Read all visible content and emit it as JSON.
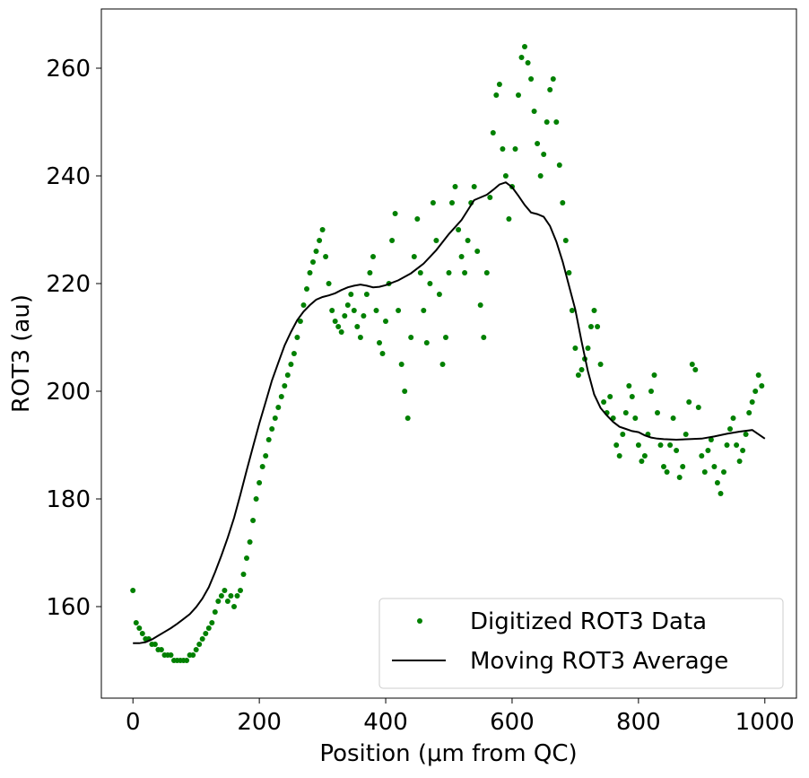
{
  "chart_data": {
    "type": "scatter",
    "title": "",
    "xlabel": "Position (μm from QC)",
    "ylabel": "ROT3 (au)",
    "xlim": [
      -50,
      1050
    ],
    "ylim": [
      143,
      271
    ],
    "xticks": [
      0,
      200,
      400,
      600,
      800,
      1000
    ],
    "yticks": [
      160,
      180,
      200,
      220,
      240,
      260
    ],
    "grid": false,
    "legend_position": "lower-right",
    "colors": {
      "scatter": "#008000",
      "line": "#000000"
    },
    "series": [
      {
        "name": "Digitized ROT3 Data",
        "kind": "scatter",
        "x": [
          0,
          5,
          10,
          15,
          20,
          25,
          30,
          35,
          40,
          45,
          50,
          55,
          60,
          65,
          70,
          75,
          80,
          85,
          90,
          95,
          100,
          105,
          110,
          115,
          120,
          125,
          130,
          135,
          140,
          145,
          150,
          155,
          160,
          165,
          170,
          175,
          180,
          185,
          190,
          195,
          200,
          205,
          210,
          215,
          220,
          225,
          230,
          235,
          240,
          245,
          250,
          255,
          260,
          265,
          270,
          275,
          280,
          285,
          290,
          295,
          300,
          305,
          310,
          315,
          320,
          325,
          330,
          335,
          340,
          345,
          350,
          355,
          360,
          365,
          370,
          375,
          380,
          385,
          390,
          395,
          400,
          405,
          410,
          415,
          420,
          425,
          430,
          435,
          440,
          445,
          450,
          455,
          460,
          465,
          470,
          475,
          480,
          485,
          490,
          495,
          500,
          505,
          510,
          515,
          520,
          525,
          530,
          535,
          540,
          545,
          550,
          555,
          560,
          565,
          570,
          575,
          580,
          585,
          590,
          595,
          600,
          605,
          610,
          615,
          620,
          625,
          630,
          635,
          640,
          645,
          650,
          655,
          660,
          665,
          670,
          675,
          680,
          685,
          690,
          695,
          700,
          705,
          710,
          715,
          720,
          725,
          730,
          735,
          740,
          745,
          750,
          755,
          760,
          765,
          770,
          775,
          780,
          785,
          790,
          795,
          800,
          805,
          810,
          815,
          820,
          825,
          830,
          835,
          840,
          845,
          850,
          855,
          860,
          865,
          870,
          875,
          880,
          885,
          890,
          895,
          900,
          905,
          910,
          915,
          920,
          925,
          930,
          935,
          940,
          945,
          950,
          955,
          960,
          965,
          970,
          975,
          980,
          985,
          990,
          995
        ],
        "y": [
          163,
          157,
          156,
          155,
          154,
          154,
          153,
          153,
          152,
          152,
          151,
          151,
          151,
          150,
          150,
          150,
          150,
          150,
          151,
          151,
          152,
          153,
          154,
          155,
          156,
          157,
          159,
          161,
          162,
          163,
          161,
          162,
          160,
          162,
          163,
          166,
          169,
          172,
          176,
          180,
          183,
          186,
          188,
          191,
          193,
          195,
          197,
          199,
          201,
          203,
          205,
          207,
          210,
          213,
          216,
          219,
          222,
          224,
          226,
          228,
          230,
          225,
          220,
          215,
          213,
          212,
          211,
          214,
          216,
          218,
          215,
          212,
          210,
          214,
          218,
          222,
          225,
          215,
          209,
          207,
          213,
          220,
          228,
          233,
          215,
          205,
          200,
          195,
          210,
          225,
          232,
          222,
          215,
          209,
          220,
          235,
          228,
          218,
          205,
          210,
          222,
          235,
          238,
          230,
          225,
          222,
          228,
          235,
          238,
          226,
          216,
          210,
          222,
          236,
          248,
          255,
          257,
          245,
          240,
          232,
          238,
          245,
          255,
          262,
          264,
          261,
          258,
          252,
          246,
          240,
          244,
          250,
          256,
          258,
          250,
          242,
          235,
          228,
          222,
          215,
          208,
          203,
          204,
          206,
          208,
          212,
          215,
          212,
          205,
          198,
          196,
          199,
          195,
          190,
          188,
          192,
          196,
          201,
          199,
          195,
          190,
          187,
          188,
          192,
          200,
          203,
          196,
          190,
          186,
          185,
          190,
          195,
          189,
          184,
          186,
          192,
          198,
          205,
          204,
          197,
          188,
          185,
          189,
          191,
          186,
          183,
          181,
          185,
          190,
          193,
          195,
          190,
          187,
          189,
          192,
          196,
          198,
          200,
          203,
          201
        ]
      },
      {
        "name": "Moving ROT3 Average",
        "kind": "line",
        "x": [
          0,
          10,
          20,
          30,
          40,
          50,
          60,
          70,
          80,
          90,
          100,
          110,
          120,
          130,
          140,
          150,
          160,
          170,
          180,
          190,
          200,
          210,
          220,
          230,
          240,
          250,
          260,
          270,
          280,
          290,
          300,
          310,
          320,
          330,
          340,
          350,
          360,
          370,
          380,
          390,
          400,
          420,
          440,
          460,
          480,
          500,
          520,
          540,
          560,
          570,
          580,
          590,
          600,
          610,
          620,
          630,
          640,
          650,
          660,
          670,
          680,
          690,
          700,
          710,
          720,
          730,
          740,
          750,
          760,
          770,
          780,
          790,
          800,
          810,
          820,
          830,
          840,
          860,
          880,
          900,
          920,
          940,
          960,
          980,
          1000
        ],
        "y": [
          153.2,
          153.2,
          153.4,
          153.9,
          154.6,
          155.3,
          156,
          156.8,
          157.7,
          158.6,
          159.9,
          161.5,
          163.6,
          166.4,
          169.5,
          172.8,
          176.5,
          180.8,
          185.3,
          189.7,
          194,
          198,
          202,
          205.3,
          208.5,
          211,
          213.2,
          214.8,
          216,
          217,
          217.5,
          217.8,
          218.2,
          218.8,
          219.3,
          219.6,
          219.8,
          219.6,
          219.3,
          219.4,
          219.7,
          220.6,
          221.9,
          223.7,
          226.2,
          229.2,
          231.8,
          235.5,
          236.5,
          237.4,
          238.4,
          238.8,
          237.9,
          236.3,
          234.6,
          233.2,
          232.9,
          232.4,
          230.7,
          227.8,
          224.1,
          219.6,
          215.2,
          209.2,
          203.7,
          199.4,
          196.9,
          195.5,
          194.3,
          193.4,
          193,
          192.6,
          192.4,
          191.8,
          191.4,
          191.2,
          191.1,
          191,
          191.1,
          191.2,
          191.6,
          192.1,
          192.5,
          192.8,
          191.2
        ]
      }
    ]
  }
}
